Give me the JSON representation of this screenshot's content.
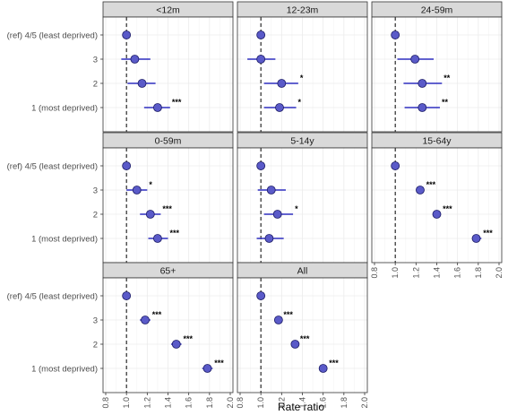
{
  "chart_data": {
    "type": "scatter",
    "subtype": "forest-plot-faceted",
    "xlabel": "Rate ratio",
    "ylabel": "",
    "xlim": [
      0.8,
      2.0
    ],
    "x_ticks": [
      0.8,
      1.0,
      1.2,
      1.4,
      1.6,
      1.8,
      2.0
    ],
    "x_tick_labels": [
      "0.8",
      "1.0",
      "1.2",
      "1.4",
      "1.6",
      "1.8",
      "2.0"
    ],
    "reference_line_x": 1.0,
    "categories": [
      "(ref) 4/5 (least deprived)",
      "3",
      "2",
      "1 (most deprived)"
    ],
    "point_color": "#5a5ac8",
    "ci_color": "#2e2ebf",
    "grid": true,
    "panels": [
      {
        "title": "<12m",
        "points": [
          {
            "category": "(ref) 4/5 (least deprived)",
            "estimate": 1.0,
            "lower": 1.0,
            "upper": 1.0,
            "sig": ""
          },
          {
            "category": "3",
            "estimate": 1.08,
            "lower": 0.95,
            "upper": 1.23,
            "sig": ""
          },
          {
            "category": "2",
            "estimate": 1.15,
            "lower": 1.01,
            "upper": 1.28,
            "sig": ""
          },
          {
            "category": "1 (most deprived)",
            "estimate": 1.3,
            "lower": 1.17,
            "upper": 1.42,
            "sig": "***"
          }
        ]
      },
      {
        "title": "12-23m",
        "points": [
          {
            "category": "(ref) 4/5 (least deprived)",
            "estimate": 1.0,
            "lower": 1.0,
            "upper": 1.0,
            "sig": ""
          },
          {
            "category": "3",
            "estimate": 1.0,
            "lower": 0.87,
            "upper": 1.14,
            "sig": ""
          },
          {
            "category": "2",
            "estimate": 1.2,
            "lower": 1.03,
            "upper": 1.36,
            "sig": "*"
          },
          {
            "category": "1 (most deprived)",
            "estimate": 1.18,
            "lower": 1.03,
            "upper": 1.34,
            "sig": "*"
          }
        ]
      },
      {
        "title": "24-59m",
        "points": [
          {
            "category": "(ref) 4/5 (least deprived)",
            "estimate": 1.0,
            "lower": 1.0,
            "upper": 1.0,
            "sig": ""
          },
          {
            "category": "3",
            "estimate": 1.19,
            "lower": 1.02,
            "upper": 1.37,
            "sig": ""
          },
          {
            "category": "2",
            "estimate": 1.26,
            "lower": 1.08,
            "upper": 1.45,
            "sig": "**"
          },
          {
            "category": "1 (most deprived)",
            "estimate": 1.26,
            "lower": 1.09,
            "upper": 1.43,
            "sig": "**"
          }
        ]
      },
      {
        "title": "0-59m",
        "points": [
          {
            "category": "(ref) 4/5 (least deprived)",
            "estimate": 1.0,
            "lower": 1.0,
            "upper": 1.0,
            "sig": ""
          },
          {
            "category": "3",
            "estimate": 1.1,
            "lower": 1.0,
            "upper": 1.2,
            "sig": "*"
          },
          {
            "category": "2",
            "estimate": 1.23,
            "lower": 1.13,
            "upper": 1.33,
            "sig": "***"
          },
          {
            "category": "1 (most deprived)",
            "estimate": 1.3,
            "lower": 1.21,
            "upper": 1.4,
            "sig": "***"
          }
        ]
      },
      {
        "title": "5-14y",
        "points": [
          {
            "category": "(ref) 4/5 (least deprived)",
            "estimate": 1.0,
            "lower": 1.0,
            "upper": 1.0,
            "sig": ""
          },
          {
            "category": "3",
            "estimate": 1.1,
            "lower": 0.97,
            "upper": 1.24,
            "sig": ""
          },
          {
            "category": "2",
            "estimate": 1.16,
            "lower": 1.03,
            "upper": 1.31,
            "sig": "*"
          },
          {
            "category": "1 (most deprived)",
            "estimate": 1.08,
            "lower": 0.96,
            "upper": 1.22,
            "sig": ""
          }
        ]
      },
      {
        "title": "15-64y",
        "points": [
          {
            "category": "(ref) 4/5 (least deprived)",
            "estimate": 1.0,
            "lower": 1.0,
            "upper": 1.0,
            "sig": ""
          },
          {
            "category": "3",
            "estimate": 1.24,
            "lower": 1.2,
            "upper": 1.28,
            "sig": "***"
          },
          {
            "category": "2",
            "estimate": 1.4,
            "lower": 1.36,
            "upper": 1.44,
            "sig": "***"
          },
          {
            "category": "1 (most deprived)",
            "estimate": 1.78,
            "lower": 1.74,
            "upper": 1.83,
            "sig": "***"
          }
        ]
      },
      {
        "title": "65+",
        "points": [
          {
            "category": "(ref) 4/5 (least deprived)",
            "estimate": 1.0,
            "lower": 1.0,
            "upper": 1.0,
            "sig": ""
          },
          {
            "category": "3",
            "estimate": 1.18,
            "lower": 1.13,
            "upper": 1.23,
            "sig": "***"
          },
          {
            "category": "2",
            "estimate": 1.48,
            "lower": 1.43,
            "upper": 1.53,
            "sig": "***"
          },
          {
            "category": "1 (most deprived)",
            "estimate": 1.78,
            "lower": 1.73,
            "upper": 1.83,
            "sig": "***"
          }
        ]
      },
      {
        "title": "All",
        "points": [
          {
            "category": "(ref) 4/5 (least deprived)",
            "estimate": 1.0,
            "lower": 1.0,
            "upper": 1.0,
            "sig": ""
          },
          {
            "category": "3",
            "estimate": 1.17,
            "lower": 1.14,
            "upper": 1.2,
            "sig": "***"
          },
          {
            "category": "2",
            "estimate": 1.33,
            "lower": 1.3,
            "upper": 1.36,
            "sig": "***"
          },
          {
            "category": "1 (most deprived)",
            "estimate": 1.6,
            "lower": 1.57,
            "upper": 1.64,
            "sig": "***"
          }
        ]
      }
    ]
  }
}
